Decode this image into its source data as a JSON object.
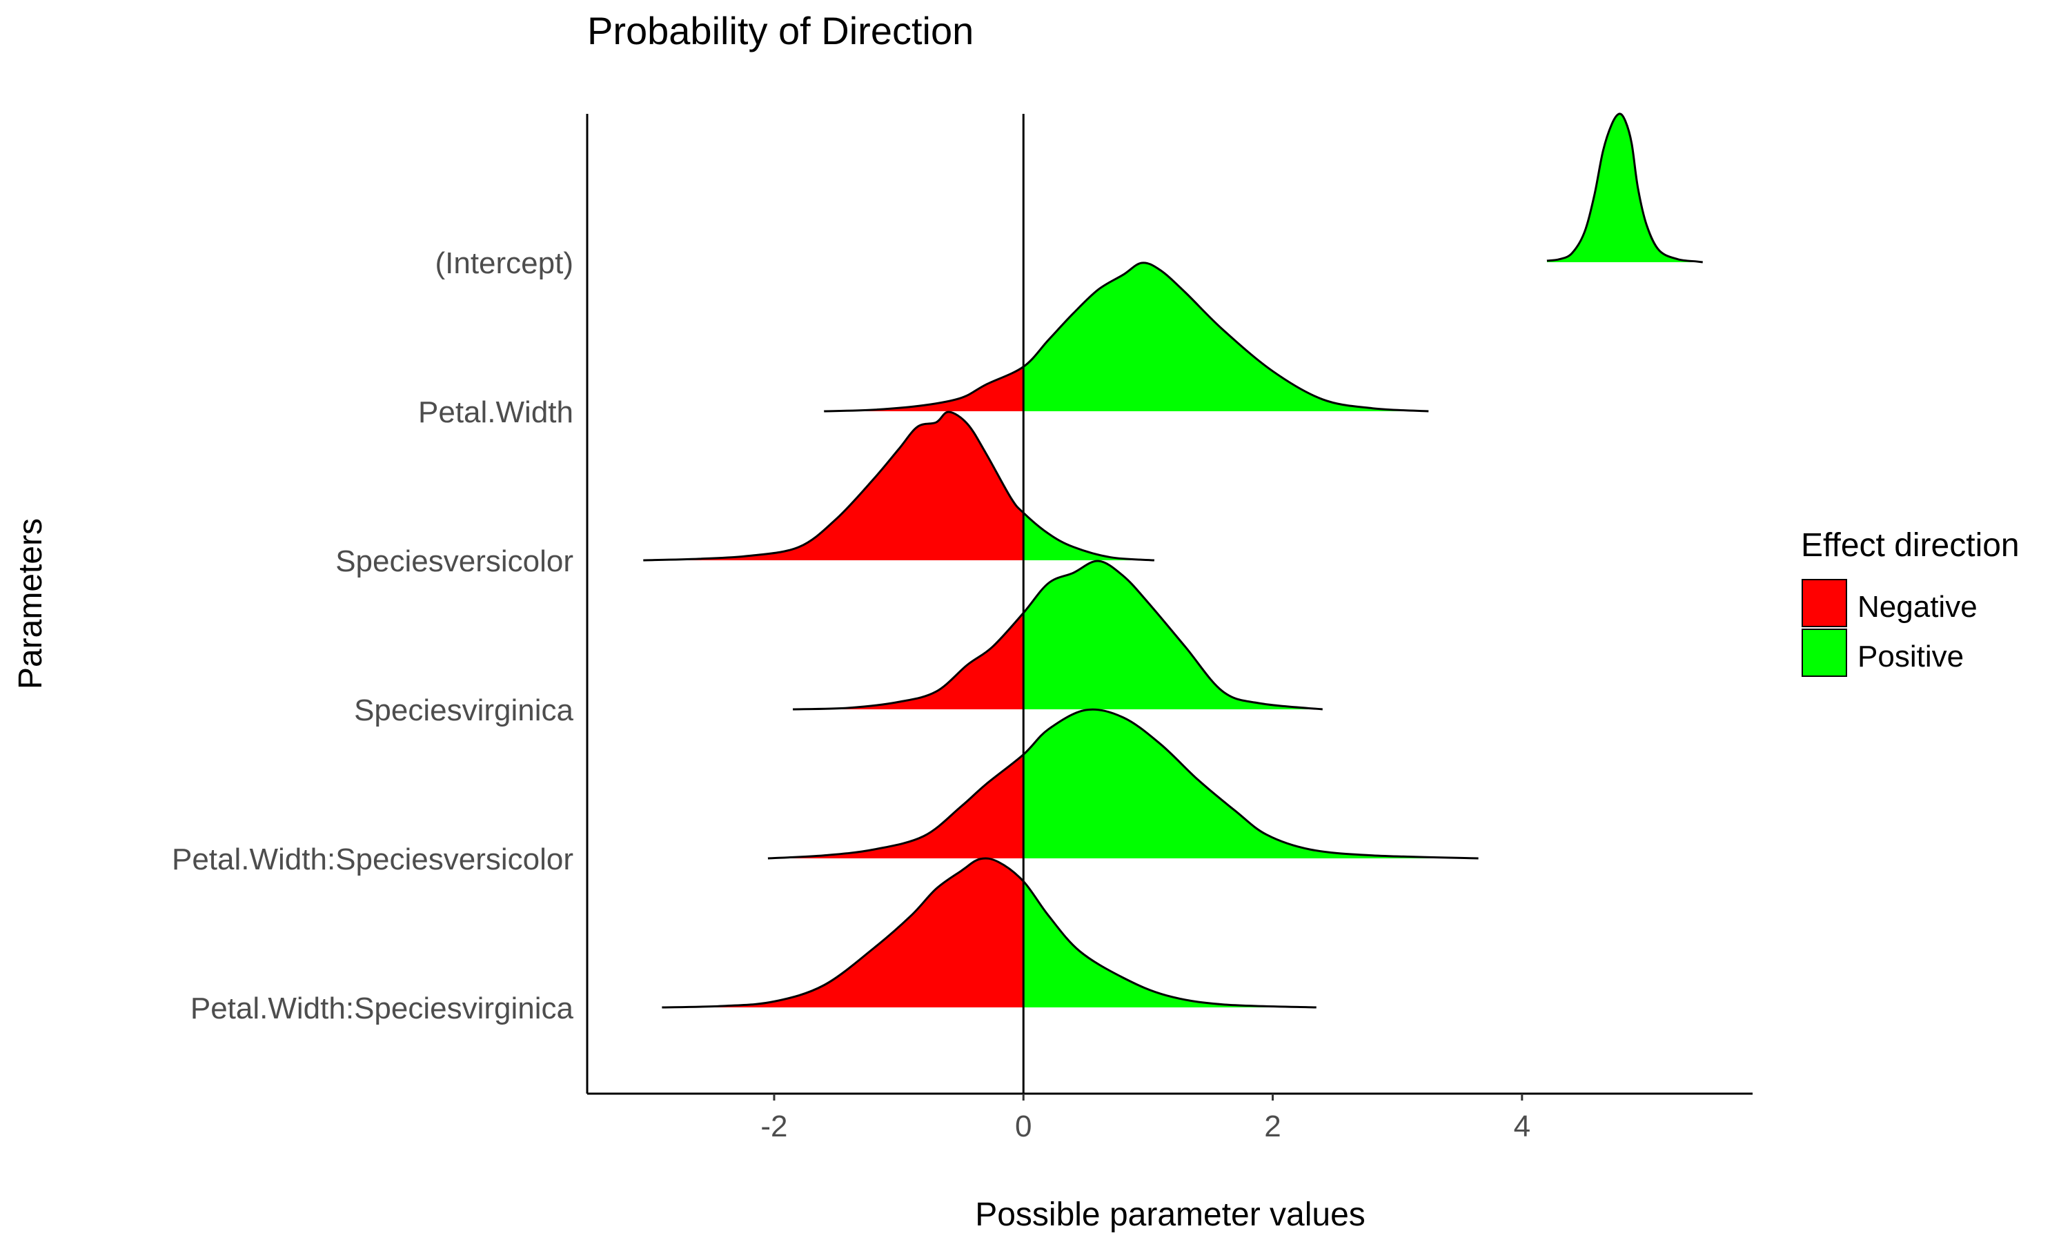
{
  "chart_data": {
    "type": "area",
    "title": "Probability of Direction",
    "xlabel": "Possible parameter values",
    "ylabel": "Parameters",
    "xlim": [
      -3.5,
      5.85
    ],
    "x_ticks": [
      -2,
      0,
      2,
      4
    ],
    "x_tick_labels": [
      "-2",
      "0",
      "2",
      "4"
    ],
    "grid": false,
    "legend": {
      "title": "Effect direction",
      "placement": "right",
      "entries": [
        {
          "label": "Negative",
          "color": "#FF0000"
        },
        {
          "label": "Positive",
          "color": "#00FF00"
        }
      ]
    },
    "categories": [
      "(Intercept)",
      "Petal.Width",
      "Speciesversicolor",
      "Speciesvirginica",
      "Petal.Width:Speciesversicolor",
      "Petal.Width:Speciesvirginica"
    ],
    "series": [
      {
        "name": "(Intercept)",
        "x": [
          4.2,
          4.3,
          4.4,
          4.5,
          4.58,
          4.65,
          4.72,
          4.78,
          4.83,
          4.88,
          4.93,
          5.0,
          5.1,
          5.25,
          5.4,
          5.45
        ],
        "density": [
          0.01,
          0.02,
          0.06,
          0.2,
          0.45,
          0.75,
          0.93,
          1.0,
          0.95,
          0.8,
          0.5,
          0.25,
          0.08,
          0.02,
          0.005,
          0.0
        ]
      },
      {
        "name": "Petal.Width",
        "x": [
          -1.6,
          -1.2,
          -0.8,
          -0.5,
          -0.3,
          0.0,
          0.2,
          0.4,
          0.6,
          0.8,
          0.95,
          1.1,
          1.3,
          1.6,
          2.0,
          2.4,
          2.8,
          3.25
        ],
        "density": [
          0.0,
          0.01,
          0.04,
          0.09,
          0.18,
          0.3,
          0.48,
          0.66,
          0.82,
          0.92,
          1.0,
          0.95,
          0.8,
          0.55,
          0.27,
          0.08,
          0.02,
          0.0
        ]
      },
      {
        "name": "Speciesversicolor",
        "x": [
          -3.05,
          -2.6,
          -2.2,
          -1.8,
          -1.5,
          -1.2,
          -1.0,
          -0.85,
          -0.7,
          -0.6,
          -0.45,
          -0.3,
          -0.1,
          0.0,
          0.2,
          0.4,
          0.7,
          1.05
        ],
        "density": [
          0.0,
          0.01,
          0.03,
          0.09,
          0.28,
          0.55,
          0.75,
          0.9,
          0.93,
          1.0,
          0.92,
          0.72,
          0.42,
          0.32,
          0.18,
          0.09,
          0.02,
          0.0
        ]
      },
      {
        "name": "Speciesvirginica",
        "x": [
          -1.85,
          -1.4,
          -1.0,
          -0.7,
          -0.45,
          -0.25,
          0.0,
          0.2,
          0.4,
          0.6,
          0.8,
          1.0,
          1.3,
          1.6,
          1.9,
          2.4
        ],
        "density": [
          0.0,
          0.01,
          0.05,
          0.12,
          0.3,
          0.42,
          0.65,
          0.85,
          0.92,
          1.0,
          0.9,
          0.72,
          0.42,
          0.12,
          0.04,
          0.0
        ]
      },
      {
        "name": "Petal.Width:Speciesversicolor",
        "x": [
          -2.05,
          -1.6,
          -1.2,
          -0.8,
          -0.5,
          -0.3,
          0.0,
          0.2,
          0.5,
          0.8,
          1.1,
          1.4,
          1.7,
          1.95,
          2.3,
          2.8,
          3.65
        ],
        "density": [
          0.0,
          0.02,
          0.06,
          0.15,
          0.35,
          0.5,
          0.7,
          0.87,
          1.0,
          0.95,
          0.77,
          0.53,
          0.32,
          0.16,
          0.06,
          0.02,
          0.0
        ]
      },
      {
        "name": "Petal.Width:Speciesvirginica",
        "x": [
          -2.9,
          -2.4,
          -2.0,
          -1.6,
          -1.2,
          -0.9,
          -0.7,
          -0.5,
          -0.35,
          -0.2,
          0.0,
          0.2,
          0.45,
          0.8,
          1.15,
          1.6,
          2.35
        ],
        "density": [
          0.0,
          0.01,
          0.04,
          0.15,
          0.4,
          0.62,
          0.8,
          0.92,
          1.0,
          0.98,
          0.85,
          0.62,
          0.38,
          0.2,
          0.08,
          0.02,
          0.0
        ]
      }
    ]
  }
}
